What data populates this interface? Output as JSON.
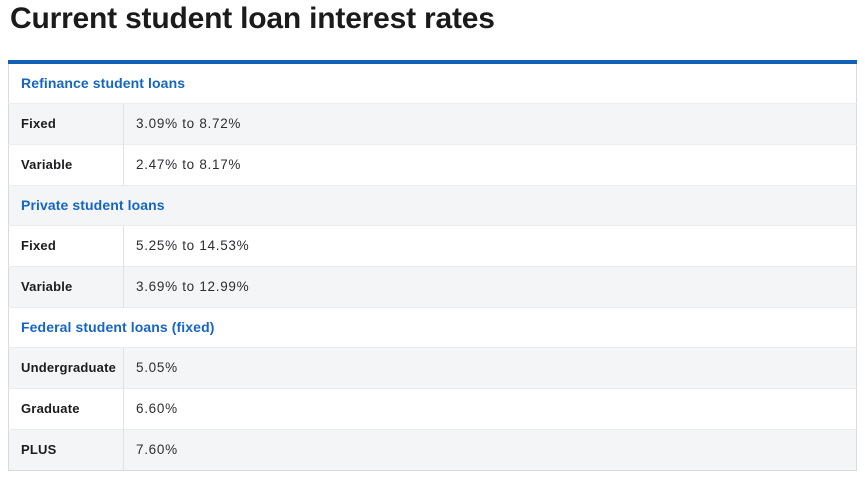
{
  "chart_data": {
    "type": "table",
    "title": "Current student loan interest rates",
    "sections": [
      {
        "header": "Refinance student loans",
        "rows": [
          {
            "label": "Fixed",
            "value": "3.09% to 8.72%"
          },
          {
            "label": "Variable",
            "value": "2.47% to 8.17%"
          }
        ]
      },
      {
        "header": "Private student loans",
        "rows": [
          {
            "label": "Fixed",
            "value": "5.25% to 14.53%"
          },
          {
            "label": "Variable",
            "value": "3.69% to 12.99%"
          }
        ]
      },
      {
        "header": "Federal student loans (fixed)",
        "rows": [
          {
            "label": "Undergraduate",
            "value": "5.05%"
          },
          {
            "label": "Graduate",
            "value": "6.60%"
          },
          {
            "label": "PLUS",
            "value": "7.60%"
          }
        ]
      }
    ]
  },
  "colors": {
    "accent_blue": "#1161b5",
    "section_header_blue": "#1566c2",
    "row_stripe": "#f4f5f7",
    "outer_border": "#d9dade",
    "row_border": "#ebecef",
    "title_text": "#1b1b1b",
    "value_text": "#2e2e32",
    "label_text": "#1c1c1f"
  }
}
